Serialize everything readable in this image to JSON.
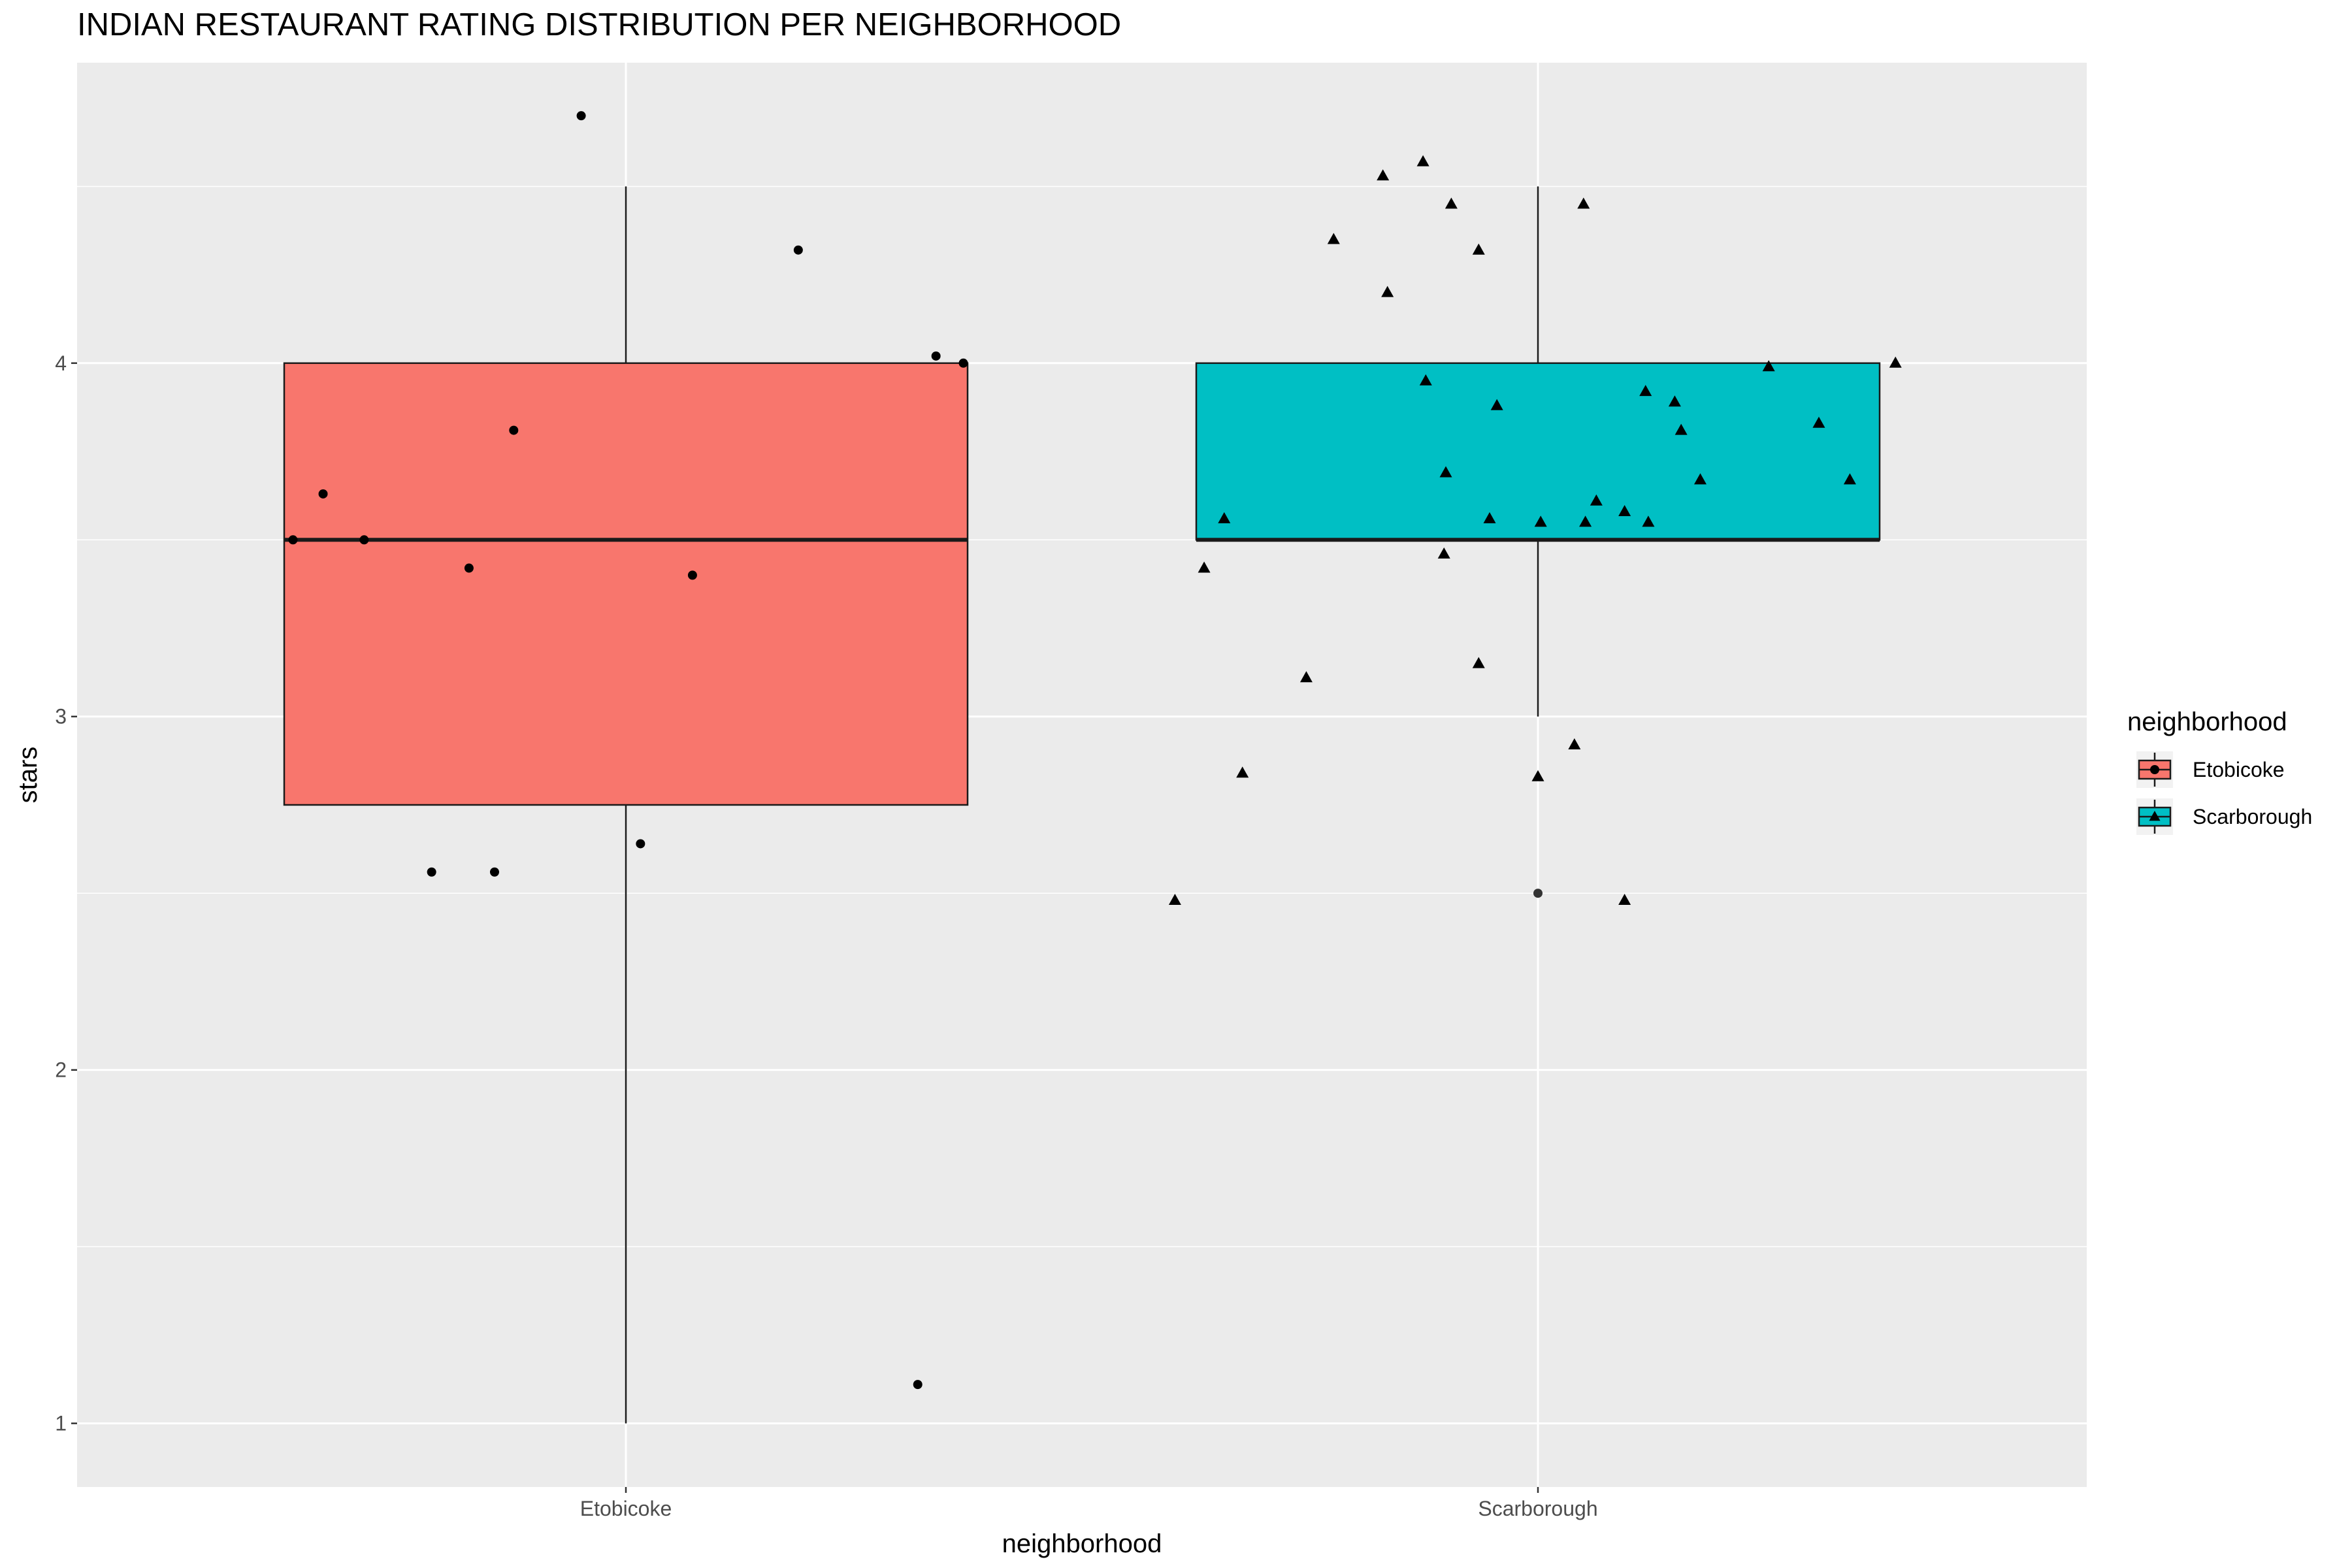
{
  "chart_data": {
    "type": "boxplot",
    "title": "INDIAN RESTAURANT RATING DISTRIBUTION PER NEIGHBORHOOD",
    "xlabel": "neighborhood",
    "ylabel": "stars",
    "ylim": [
      0.82,
      4.85
    ],
    "yticks": [
      1,
      2,
      3,
      4
    ],
    "categories": [
      "Etobicoke",
      "Scarborough"
    ],
    "grid": true,
    "legend": {
      "title": "neighborhood",
      "position": "right",
      "entries": [
        "Etobicoke",
        "Scarborough"
      ]
    },
    "series": [
      {
        "name": "Etobicoke",
        "color": "#F8766D",
        "shape": "circle",
        "box": {
          "min": 1.0,
          "q1": 2.75,
          "median": 3.5,
          "q3": 4.0,
          "max": 4.5
        },
        "points": [
          {
            "x": -0.365,
            "y": 3.5
          },
          {
            "x": -0.332,
            "y": 3.63
          },
          {
            "x": -0.287,
            "y": 3.5
          },
          {
            "x": -0.213,
            "y": 2.56
          },
          {
            "x": -0.172,
            "y": 3.42
          },
          {
            "x": -0.123,
            "y": 3.81
          },
          {
            "x": -0.144,
            "y": 2.56
          },
          {
            "x": -0.049,
            "y": 4.7
          },
          {
            "x": 0.016,
            "y": 2.64
          },
          {
            "x": 0.073,
            "y": 3.4
          },
          {
            "x": 0.189,
            "y": 4.32
          },
          {
            "x": 0.32,
            "y": 1.11
          },
          {
            "x": 0.34,
            "y": 4.02
          },
          {
            "x": 0.37,
            "y": 4.0
          }
        ]
      },
      {
        "name": "Scarborough",
        "color": "#00BFC4",
        "shape": "triangle",
        "box": {
          "min": 3.0,
          "q1": 3.5,
          "median": 3.5,
          "q3": 4.0,
          "max": 4.5
        },
        "outliers": [
          2.5
        ],
        "points": [
          {
            "x": -0.398,
            "y": 2.48
          },
          {
            "x": -0.366,
            "y": 3.42
          },
          {
            "x": -0.344,
            "y": 3.56
          },
          {
            "x": -0.324,
            "y": 2.84
          },
          {
            "x": -0.254,
            "y": 3.11
          },
          {
            "x": -0.224,
            "y": 4.35
          },
          {
            "x": -0.17,
            "y": 4.53
          },
          {
            "x": -0.165,
            "y": 4.2
          },
          {
            "x": -0.126,
            "y": 4.57
          },
          {
            "x": -0.123,
            "y": 3.95
          },
          {
            "x": -0.103,
            "y": 3.46
          },
          {
            "x": -0.101,
            "y": 3.69
          },
          {
            "x": -0.095,
            "y": 4.45
          },
          {
            "x": -0.065,
            "y": 4.32
          },
          {
            "x": -0.065,
            "y": 3.15
          },
          {
            "x": -0.053,
            "y": 3.56
          },
          {
            "x": -0.045,
            "y": 3.88
          },
          {
            "x": 0.0,
            "y": 2.83
          },
          {
            "x": 0.003,
            "y": 3.55
          },
          {
            "x": 0.04,
            "y": 2.92
          },
          {
            "x": 0.05,
            "y": 4.45
          },
          {
            "x": 0.052,
            "y": 3.55
          },
          {
            "x": 0.064,
            "y": 3.61
          },
          {
            "x": 0.095,
            "y": 3.58
          },
          {
            "x": 0.095,
            "y": 2.48
          },
          {
            "x": 0.118,
            "y": 3.92
          },
          {
            "x": 0.121,
            "y": 3.55
          },
          {
            "x": 0.15,
            "y": 3.89
          },
          {
            "x": 0.157,
            "y": 3.81
          },
          {
            "x": 0.178,
            "y": 3.67
          },
          {
            "x": 0.253,
            "y": 3.99
          },
          {
            "x": 0.308,
            "y": 3.83
          },
          {
            "x": 0.342,
            "y": 3.67
          },
          {
            "x": 0.392,
            "y": 4.0
          }
        ]
      }
    ]
  }
}
